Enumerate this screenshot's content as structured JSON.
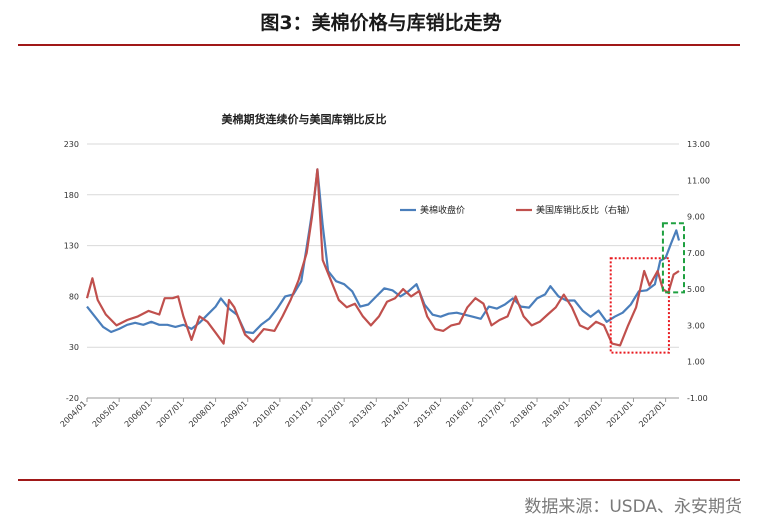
{
  "header": {
    "title": "图3：美棉价格与库销比走势"
  },
  "footer": {
    "source": "数据来源：USDA、永安期货"
  },
  "colors": {
    "rule": "#a01818",
    "price": "#4a7ebb",
    "ratio": "#c0504d",
    "red_box": "#e8191f",
    "green_box": "#1ea040"
  },
  "chart_data": {
    "type": "line",
    "title": "美棉期货连续价与美国库销比反比",
    "xticks": [
      "2004/01",
      "2005/01",
      "2006/01",
      "2007/01",
      "2008/01",
      "2009/01",
      "2010/01",
      "2011/01",
      "2012/01",
      "2013/01",
      "2014/01",
      "2015/01",
      "2016/01",
      "2017/01",
      "2018/01",
      "2019/01",
      "2020/01",
      "2021/01",
      "2022/01"
    ],
    "x_range": [
      "2004/01",
      "2022/06"
    ],
    "y_left": {
      "min": -20,
      "max": 230,
      "ticks": [
        "-20",
        "30",
        "80",
        "130",
        "180",
        "230"
      ]
    },
    "y_right": {
      "min": -1,
      "max": 13,
      "ticks": [
        "-1.00",
        "1.00",
        "3.00",
        "5.00",
        "7.00",
        "9.00",
        "11.00",
        "13.00"
      ]
    },
    "legend": {
      "position": "top-right"
    },
    "series": [
      {
        "name": "美棉收盘价",
        "axis": "left",
        "color": "#4a7ebb",
        "points": [
          [
            "2004/01",
            70
          ],
          [
            "2004/04",
            60
          ],
          [
            "2004/07",
            50
          ],
          [
            "2004/10",
            45
          ],
          [
            "2005/01",
            48
          ],
          [
            "2005/04",
            52
          ],
          [
            "2005/07",
            54
          ],
          [
            "2005/10",
            52
          ],
          [
            "2006/01",
            55
          ],
          [
            "2006/04",
            52
          ],
          [
            "2006/07",
            52
          ],
          [
            "2006/10",
            50
          ],
          [
            "2007/01",
            52
          ],
          [
            "2007/04",
            48
          ],
          [
            "2007/07",
            54
          ],
          [
            "2007/10",
            62
          ],
          [
            "2008/01",
            70
          ],
          [
            "2008/03",
            78
          ],
          [
            "2008/06",
            68
          ],
          [
            "2008/09",
            62
          ],
          [
            "2008/12",
            45
          ],
          [
            "2009/03",
            44
          ],
          [
            "2009/06",
            52
          ],
          [
            "2009/09",
            58
          ],
          [
            "2009/12",
            68
          ],
          [
            "2010/03",
            80
          ],
          [
            "2010/06",
            82
          ],
          [
            "2010/09",
            95
          ],
          [
            "2010/12",
            145
          ],
          [
            "2011/02",
            180
          ],
          [
            "2011/03",
            205
          ],
          [
            "2011/05",
            150
          ],
          [
            "2011/07",
            105
          ],
          [
            "2011/10",
            95
          ],
          [
            "2012/01",
            92
          ],
          [
            "2012/04",
            85
          ],
          [
            "2012/07",
            70
          ],
          [
            "2012/10",
            72
          ],
          [
            "2013/01",
            80
          ],
          [
            "2013/04",
            88
          ],
          [
            "2013/07",
            86
          ],
          [
            "2013/10",
            80
          ],
          [
            "2014/01",
            85
          ],
          [
            "2014/04",
            92
          ],
          [
            "2014/07",
            72
          ],
          [
            "2014/10",
            62
          ],
          [
            "2015/01",
            60
          ],
          [
            "2015/04",
            63
          ],
          [
            "2015/07",
            64
          ],
          [
            "2015/10",
            62
          ],
          [
            "2016/01",
            60
          ],
          [
            "2016/04",
            58
          ],
          [
            "2016/07",
            70
          ],
          [
            "2016/10",
            68
          ],
          [
            "2017/01",
            72
          ],
          [
            "2017/04",
            78
          ],
          [
            "2017/07",
            70
          ],
          [
            "2017/10",
            69
          ],
          [
            "2018/01",
            78
          ],
          [
            "2018/04",
            82
          ],
          [
            "2018/06",
            90
          ],
          [
            "2018/09",
            80
          ],
          [
            "2018/12",
            76
          ],
          [
            "2019/03",
            76
          ],
          [
            "2019/06",
            66
          ],
          [
            "2019/09",
            60
          ],
          [
            "2019/12",
            66
          ],
          [
            "2020/03",
            55
          ],
          [
            "2020/06",
            60
          ],
          [
            "2020/09",
            64
          ],
          [
            "2020/12",
            72
          ],
          [
            "2021/03",
            85
          ],
          [
            "2021/06",
            86
          ],
          [
            "2021/09",
            92
          ],
          [
            "2021/11",
            115
          ],
          [
            "2022/01",
            118
          ],
          [
            "2022/03",
            132
          ],
          [
            "2022/05",
            145
          ],
          [
            "2022/06",
            135
          ]
        ]
      },
      {
        "name": "美国库销比反比（右轴）",
        "axis": "right",
        "color": "#c0504d",
        "points": [
          [
            "2004/01",
            4.5
          ],
          [
            "2004/03",
            5.6
          ],
          [
            "2004/05",
            4.4
          ],
          [
            "2004/08",
            3.6
          ],
          [
            "2004/12",
            3.0
          ],
          [
            "2005/04",
            3.3
          ],
          [
            "2005/08",
            3.5
          ],
          [
            "2005/12",
            3.8
          ],
          [
            "2006/04",
            3.6
          ],
          [
            "2006/06",
            4.5
          ],
          [
            "2006/09",
            4.5
          ],
          [
            "2006/11",
            4.6
          ],
          [
            "2007/01",
            3.5
          ],
          [
            "2007/04",
            2.2
          ],
          [
            "2007/07",
            3.5
          ],
          [
            "2007/10",
            3.2
          ],
          [
            "2008/01",
            2.6
          ],
          [
            "2008/04",
            2.0
          ],
          [
            "2008/06",
            4.4
          ],
          [
            "2008/08",
            4.0
          ],
          [
            "2008/12",
            2.5
          ],
          [
            "2009/03",
            2.1
          ],
          [
            "2009/07",
            2.8
          ],
          [
            "2009/11",
            2.7
          ],
          [
            "2010/02",
            3.5
          ],
          [
            "2010/05",
            4.4
          ],
          [
            "2010/08",
            5.5
          ],
          [
            "2010/11",
            7.0
          ],
          [
            "2011/01",
            9.0
          ],
          [
            "2011/03",
            11.6
          ],
          [
            "2011/05",
            6.6
          ],
          [
            "2011/08",
            5.5
          ],
          [
            "2011/11",
            4.4
          ],
          [
            "2012/02",
            4.0
          ],
          [
            "2012/05",
            4.2
          ],
          [
            "2012/08",
            3.5
          ],
          [
            "2012/11",
            3.0
          ],
          [
            "2013/02",
            3.5
          ],
          [
            "2013/05",
            4.3
          ],
          [
            "2013/08",
            4.5
          ],
          [
            "2013/11",
            5.0
          ],
          [
            "2014/02",
            4.6
          ],
          [
            "2014/05",
            4.9
          ],
          [
            "2014/08",
            3.5
          ],
          [
            "2014/11",
            2.8
          ],
          [
            "2015/02",
            2.7
          ],
          [
            "2015/05",
            3.0
          ],
          [
            "2015/08",
            3.1
          ],
          [
            "2015/11",
            4.0
          ],
          [
            "2016/02",
            4.5
          ],
          [
            "2016/05",
            4.2
          ],
          [
            "2016/08",
            3.0
          ],
          [
            "2016/11",
            3.3
          ],
          [
            "2017/02",
            3.5
          ],
          [
            "2017/05",
            4.6
          ],
          [
            "2017/08",
            3.5
          ],
          [
            "2017/11",
            3.0
          ],
          [
            "2018/02",
            3.2
          ],
          [
            "2018/05",
            3.6
          ],
          [
            "2018/08",
            4.0
          ],
          [
            "2018/11",
            4.7
          ],
          [
            "2019/02",
            4.0
          ],
          [
            "2019/05",
            3.0
          ],
          [
            "2019/08",
            2.8
          ],
          [
            "2019/11",
            3.2
          ],
          [
            "2020/02",
            3.0
          ],
          [
            "2020/05",
            2.0
          ],
          [
            "2020/08",
            1.9
          ],
          [
            "2020/11",
            3.0
          ],
          [
            "2021/02",
            4.0
          ],
          [
            "2021/05",
            6.0
          ],
          [
            "2021/07",
            5.2
          ],
          [
            "2021/10",
            6.0
          ],
          [
            "2021/12",
            5.0
          ],
          [
            "2022/02",
            4.8
          ],
          [
            "2022/04",
            5.8
          ],
          [
            "2022/06",
            6.0
          ]
        ]
      }
    ]
  }
}
